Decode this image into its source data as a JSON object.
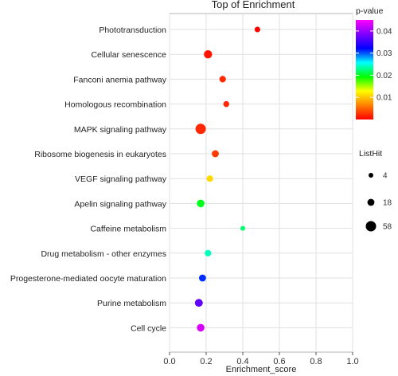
{
  "chart_data": {
    "type": "scatter",
    "title": "Top  of  Enrichment",
    "xlabel": "Enrichment_score",
    "ylabel": "",
    "xlim": [
      0.0,
      1.0
    ],
    "xticks": [
      0.0,
      0.2,
      0.4,
      0.6,
      0.8,
      1.0
    ],
    "xtick_labels": [
      "0.0",
      "0.2",
      "0.4",
      "0.6",
      "0.8",
      "1.0"
    ],
    "grid": true,
    "points": [
      {
        "term": "Phototransduction",
        "x": 0.48,
        "pvalue": 0.0,
        "hits": 8
      },
      {
        "term": "Cellular senescence",
        "x": 0.21,
        "pvalue": 0.001,
        "hits": 30
      },
      {
        "term": "Fanconi anemia pathway",
        "x": 0.29,
        "pvalue": 0.002,
        "hits": 14
      },
      {
        "term": "Homologous recombination",
        "x": 0.31,
        "pvalue": 0.002,
        "hits": 10
      },
      {
        "term": "MAPK signaling pathway",
        "x": 0.17,
        "pvalue": 0.002,
        "hits": 58
      },
      {
        "term": "Ribosome biogenesis in eukaryotes",
        "x": 0.25,
        "pvalue": 0.003,
        "hits": 18
      },
      {
        "term": "VEGF signaling pathway",
        "x": 0.22,
        "pvalue": 0.011,
        "hits": 14
      },
      {
        "term": "Apelin signaling pathway",
        "x": 0.17,
        "pvalue": 0.02,
        "hits": 24
      },
      {
        "term": "Caffeine metabolism",
        "x": 0.4,
        "pvalue": 0.022,
        "hits": 4
      },
      {
        "term": "Drug metabolism - other enzymes",
        "x": 0.21,
        "pvalue": 0.024,
        "hits": 14
      },
      {
        "term": "Progesterone-mediated oocyte maturation",
        "x": 0.18,
        "pvalue": 0.031,
        "hits": 18
      },
      {
        "term": "Purine metabolism",
        "x": 0.16,
        "pvalue": 0.037,
        "hits": 26
      },
      {
        "term": "Cell cycle",
        "x": 0.17,
        "pvalue": 0.043,
        "hits": 24
      }
    ],
    "color_legend": {
      "title": "p-value",
      "range": [
        0.0,
        0.045
      ],
      "ticks": [
        0.01,
        0.02,
        0.03,
        0.04
      ],
      "tick_labels": [
        "0.01",
        "0.02",
        "0.03",
        "0.04"
      ],
      "colors_low_to_high": [
        "#ff0000",
        "#ff7f00",
        "#ffff00",
        "#00ff00",
        "#00ffff",
        "#0000ff",
        "#8000ff",
        "#ff00ff"
      ]
    },
    "size_legend": {
      "title": "ListHit",
      "values": [
        4,
        18,
        58
      ],
      "labels": [
        "4",
        "18",
        "58"
      ]
    },
    "legend_position": "right"
  }
}
